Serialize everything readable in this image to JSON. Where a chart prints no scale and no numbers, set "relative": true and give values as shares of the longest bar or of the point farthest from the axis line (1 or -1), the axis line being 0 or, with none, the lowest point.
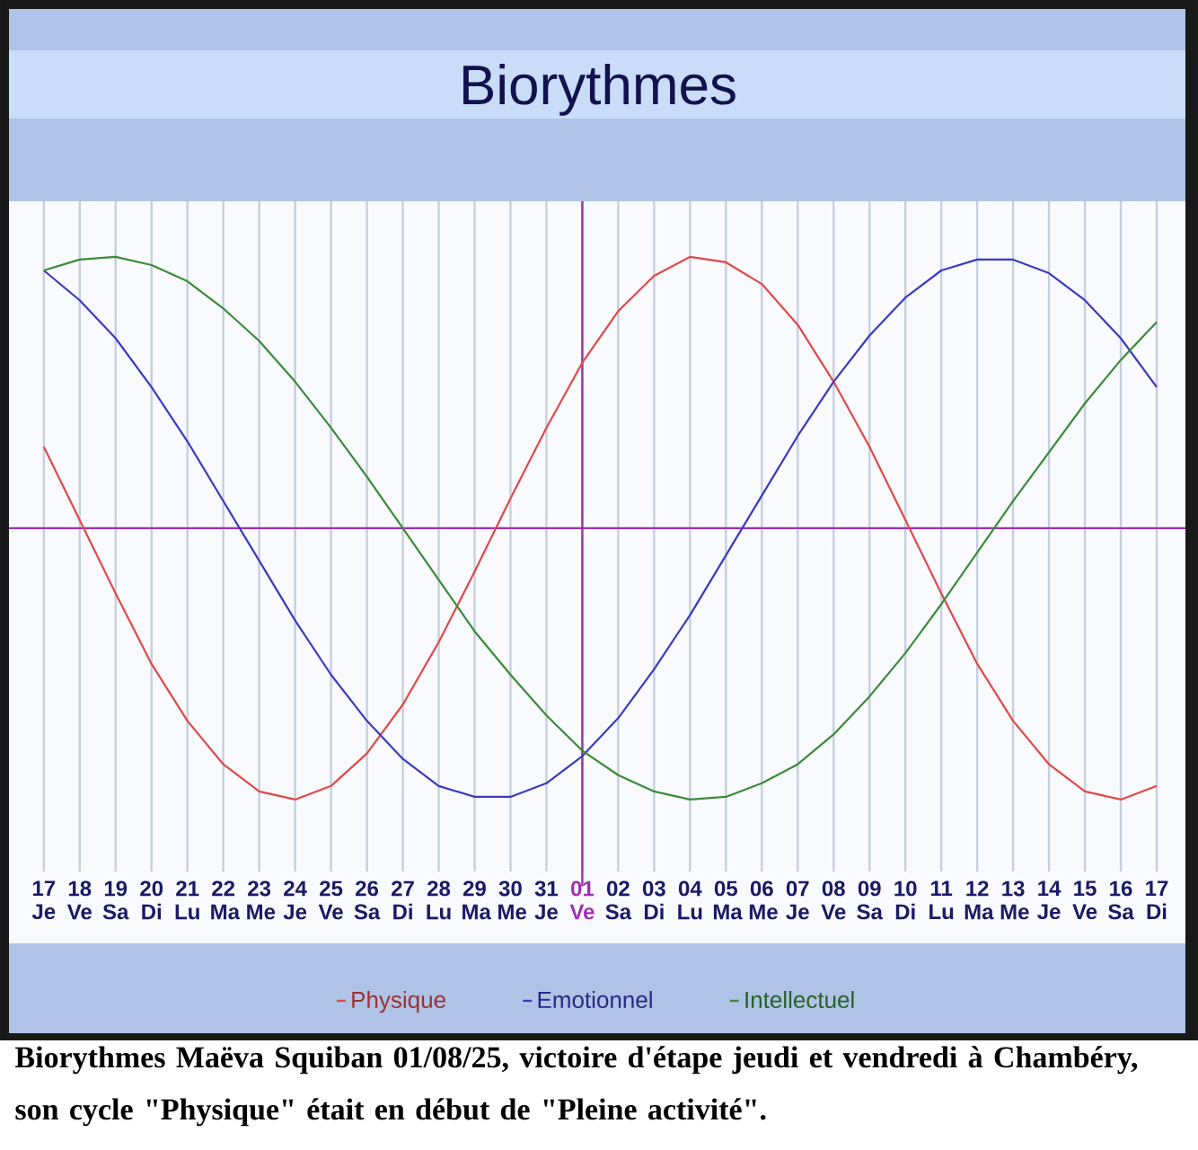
{
  "chart_data": {
    "type": "line",
    "title": "Biorythmes",
    "relative": true,
    "grid": "x",
    "legend": "bottom",
    "marker": "none",
    "categories": [
      "17 Je",
      "18 Ve",
      "19 Sa",
      "20 Di",
      "21 Lu",
      "22 Ma",
      "23 Me",
      "24 Je",
      "25 Ve",
      "26 Sa",
      "27 Di",
      "28 Lu",
      "29 Ma",
      "30 Me",
      "31 Je",
      "01 Ve",
      "02 Sa",
      "03 Di",
      "04 Lu",
      "05 Ma",
      "06 Me",
      "07 Je",
      "08 Ve",
      "09 Sa",
      "10 Di",
      "11 Lu",
      "12 Ma",
      "13 Me",
      "14 Je",
      "15 Ve",
      "16 Sa",
      "17 Di"
    ],
    "series": [
      {
        "name": "Physique",
        "color": "#e04848",
        "values": [
          0.3,
          0.03,
          -0.24,
          -0.5,
          -0.71,
          -0.87,
          -0.97,
          -1.0,
          -0.95,
          -0.83,
          -0.65,
          -0.42,
          -0.16,
          0.11,
          0.37,
          0.61,
          0.8,
          0.93,
          1.0,
          0.98,
          0.9,
          0.75,
          0.54,
          0.3,
          0.03,
          -0.24,
          -0.5,
          -0.71,
          -0.87,
          -0.97,
          -1.0,
          -0.95
        ]
      },
      {
        "name": "Emotionnel",
        "color": "#3a3ac0",
        "values": [
          0.95,
          0.84,
          0.7,
          0.52,
          0.32,
          0.1,
          -0.12,
          -0.34,
          -0.54,
          -0.71,
          -0.85,
          -0.95,
          -0.99,
          -0.99,
          -0.94,
          -0.84,
          -0.7,
          -0.52,
          -0.32,
          -0.1,
          0.12,
          0.34,
          0.54,
          0.71,
          0.85,
          0.95,
          0.99,
          0.99,
          0.94,
          0.84,
          0.7,
          0.52
        ]
      },
      {
        "name": "Intellectuel",
        "color": "#3a8a3a",
        "values": [
          0.95,
          0.99,
          1.0,
          0.97,
          0.91,
          0.81,
          0.69,
          0.54,
          0.37,
          0.19,
          0.0,
          -0.19,
          -0.38,
          -0.54,
          -0.69,
          -0.82,
          -0.91,
          -0.97,
          -1.0,
          -0.99,
          -0.94,
          -0.87,
          -0.76,
          -0.62,
          -0.46,
          -0.28,
          -0.09,
          0.1,
          0.28,
          0.46,
          0.62,
          0.76
        ]
      }
    ],
    "ref_lines": [
      {
        "axis": "x",
        "value": "01 Ve",
        "color": "#a030b0"
      },
      {
        "axis": "y",
        "value": 0,
        "color": "#a030b0"
      }
    ],
    "annotations": [
      "Biorythmes Maëva Squiban 01/08/25, victoire d'étape jeudi et vendredi à Chambéry, son cycle \"Physique\" était en début de \"Pleine activité\"."
    ]
  }
}
